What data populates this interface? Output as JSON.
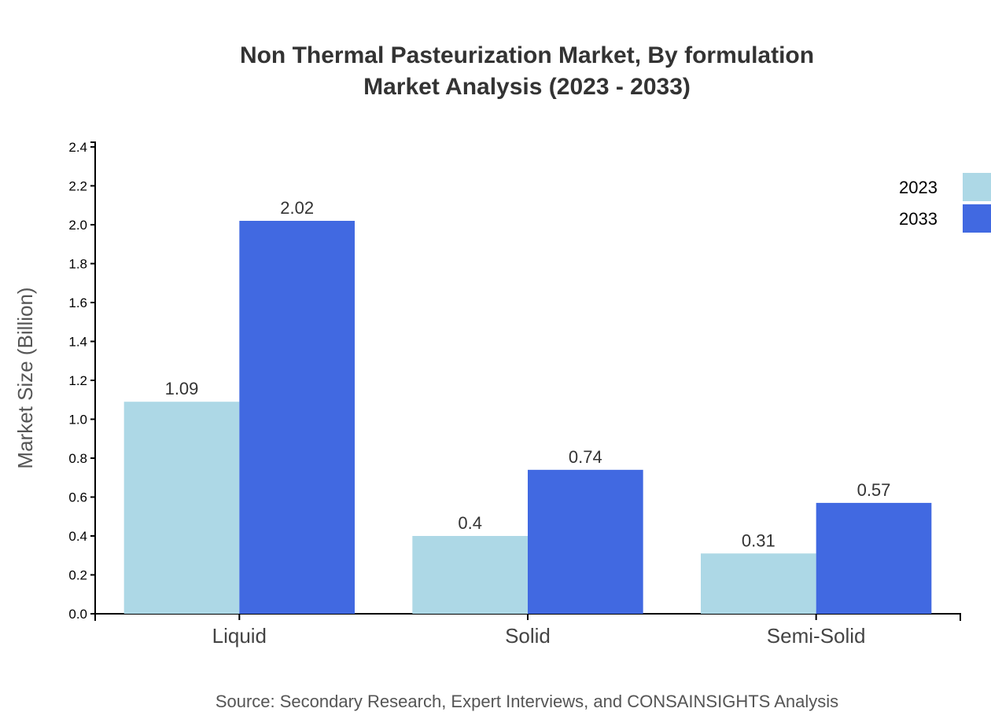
{
  "chart_data": {
    "type": "bar",
    "title": "Non Thermal Pasteurization Market, By formulation",
    "subtitle": "Market Analysis (2023 - 2033)",
    "xlabel": "",
    "ylabel": "Market Size (Billion)",
    "categories": [
      "Liquid",
      "Solid",
      "Semi-Solid"
    ],
    "series": [
      {
        "name": "2023",
        "values": [
          1.09,
          0.4,
          0.31
        ],
        "color": "#add8e6"
      },
      {
        "name": "2033",
        "values": [
          2.02,
          0.74,
          0.57
        ],
        "color": "#4169e1"
      }
    ],
    "ylim": [
      0,
      2.424
    ],
    "yticks": [
      "0.0",
      "0.2",
      "0.4",
      "0.6",
      "0.8",
      "1.0",
      "1.2",
      "1.4",
      "1.6",
      "1.8",
      "2.0",
      "2.2",
      "2.4"
    ],
    "grid": false,
    "legend": "top-right",
    "source": "Source: Secondary Research, Expert Interviews, and CONSAINSIGHTS Analysis"
  }
}
